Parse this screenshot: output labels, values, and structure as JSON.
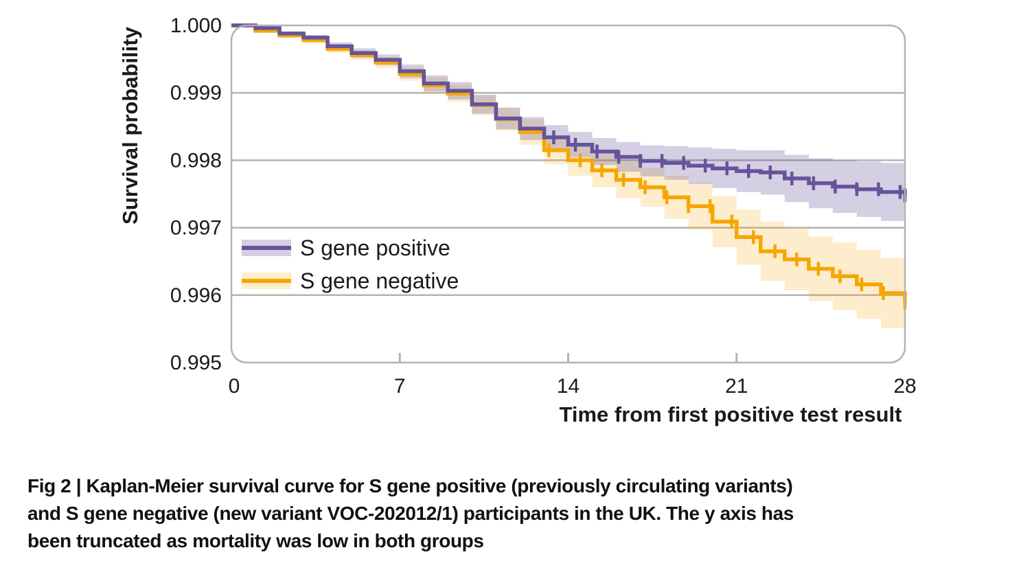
{
  "figure": {
    "caption_lines": [
      "Fig 2 | Kaplan-Meier survival curve for S gene positive (previously circulating variants)",
      "and S gene negative (new variant VOC-202012/1) participants in the UK. The y axis has",
      "been truncated as mortality was low in both groups"
    ]
  },
  "chart_data": {
    "type": "line",
    "subtype": "kaplan-meier-step",
    "title": "",
    "xlabel": "Time from first positive test result",
    "ylabel": "Survival probability",
    "xlim": [
      0,
      28
    ],
    "ylim": [
      0.995,
      1.0
    ],
    "xticks": [
      0,
      7,
      14,
      21,
      28
    ],
    "xtick_labels": [
      "0",
      "7",
      "14",
      "21",
      "28"
    ],
    "yticks": [
      1.0,
      0.999,
      0.998,
      0.997,
      0.996,
      0.995
    ],
    "ytick_labels": [
      "1.000",
      "0.999",
      "0.998",
      "0.997",
      "0.996",
      "0.995"
    ],
    "grid": "horizontal",
    "legend_position": "inside-left-middle",
    "x_days": [
      0,
      1,
      2,
      3,
      4,
      5,
      6,
      7,
      8,
      9,
      10,
      11,
      12,
      13,
      14,
      15,
      16,
      17,
      18,
      19,
      20,
      21,
      22,
      23,
      24,
      25,
      26,
      27,
      28
    ],
    "series": [
      {
        "name": "S gene negative",
        "color": "#f7a600",
        "band_color": "rgba(247,166,0,0.20)",
        "values": [
          1.0,
          0.99992,
          0.99985,
          0.99978,
          0.99965,
          0.99956,
          0.99945,
          0.99928,
          0.99911,
          0.99899,
          0.99882,
          0.99861,
          0.99842,
          0.99815,
          0.998,
          0.99785,
          0.99771,
          0.9976,
          0.99745,
          0.99732,
          0.99709,
          0.99686,
          0.99665,
          0.99653,
          0.99639,
          0.99628,
          0.99616,
          0.99603,
          0.99589
        ],
        "ci_half_width": [
          0.0,
          2e-05,
          3e-05,
          4e-05,
          6e-05,
          7e-05,
          8e-05,
          0.0001,
          0.00012,
          0.00013,
          0.00015,
          0.00017,
          0.00019,
          0.00021,
          0.00023,
          0.00025,
          0.00027,
          0.00029,
          0.00032,
          0.00035,
          0.00038,
          0.00041,
          0.00044,
          0.00046,
          0.00048,
          0.0005,
          0.00051,
          0.00052,
          0.00053
        ],
        "censor_days": [
          13.2,
          14.5,
          15.4,
          16.3,
          17.2,
          18.1,
          19.0,
          19.9,
          20.8,
          21.7,
          22.6,
          23.5,
          24.4,
          25.3,
          26.2,
          27.1,
          28.0
        ]
      },
      {
        "name": "S gene positive",
        "color": "#65549b",
        "band_color": "rgba(101,84,155,0.28)",
        "values": [
          1.0,
          0.99996,
          0.99988,
          0.99982,
          0.99969,
          0.99959,
          0.99949,
          0.99932,
          0.99914,
          0.99903,
          0.99883,
          0.99862,
          0.99847,
          0.99834,
          0.99823,
          0.99813,
          0.99805,
          0.99799,
          0.99796,
          0.99792,
          0.99788,
          0.99784,
          0.99782,
          0.99773,
          0.99766,
          0.99761,
          0.99757,
          0.99753,
          0.99748
        ],
        "ci_half_width": [
          0.0,
          2e-05,
          3e-05,
          4e-05,
          6e-05,
          7e-05,
          8e-05,
          0.0001,
          0.00012,
          0.00013,
          0.00014,
          0.00016,
          0.00017,
          0.00018,
          0.00019,
          0.0002,
          0.00022,
          0.00023,
          0.00025,
          0.00027,
          0.00029,
          0.00031,
          0.00033,
          0.00035,
          0.00037,
          0.00039,
          0.00041,
          0.00043,
          0.00045
        ],
        "censor_days": [
          13.4,
          14.3,
          15.2,
          16.1,
          17.0,
          17.9,
          18.8,
          19.7,
          20.6,
          21.5,
          22.4,
          23.3,
          24.2,
          25.1,
          26.0,
          26.9,
          27.8,
          28.0
        ]
      }
    ],
    "legend": [
      "S gene positive",
      "S gene negative"
    ]
  },
  "style": {
    "grid_color": "#b3b3b3",
    "frame_color": "#b3b3b3",
    "text_color": "#1a1a1a",
    "background": "#ffffff"
  }
}
